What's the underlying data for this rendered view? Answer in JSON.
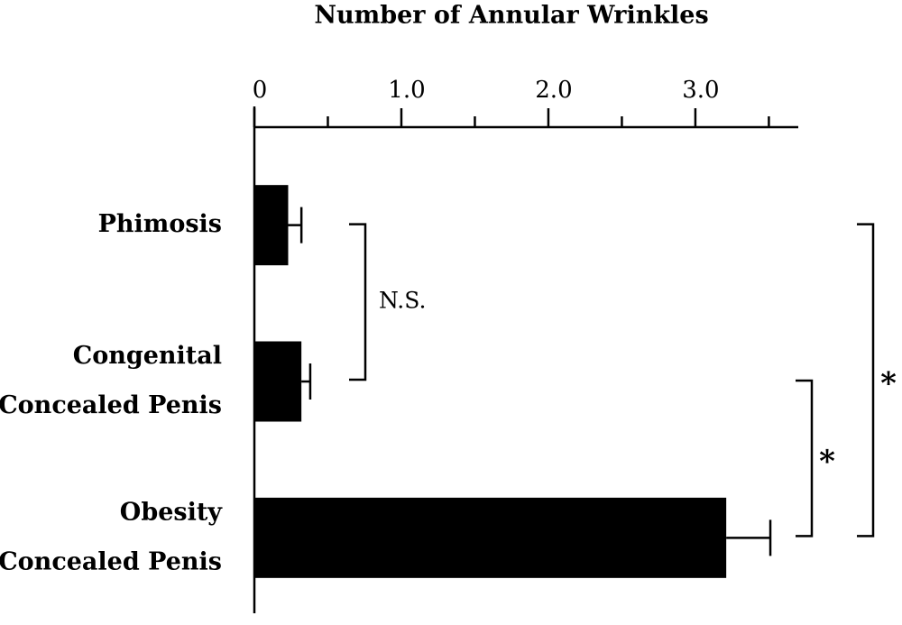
{
  "chart_data": {
    "type": "barh",
    "title": "Number of Annular Wrinkles",
    "categories": [
      [
        "Phimosis"
      ],
      [
        "Congenital",
        "Concealed Penis"
      ],
      [
        "Obesity",
        "Concealed Penis"
      ]
    ],
    "values": [
      0.23,
      0.32,
      3.21
    ],
    "errors": [
      0.09,
      0.06,
      0.3
    ],
    "color": "#000000",
    "xlim": [
      0,
      3.7
    ],
    "xticks": [
      0,
      {
        "value": 1,
        "label": "1.0"
      },
      {
        "value": 2,
        "label": "2.0"
      },
      {
        "value": 3,
        "label": "3.0"
      }
    ],
    "xminorticks": [
      0.5,
      1.5,
      2.5,
      3.5
    ],
    "annotations": [
      {
        "text": "N.S.",
        "between": [
          0,
          1
        ]
      },
      {
        "text": "*",
        "between": [
          1,
          2
        ]
      },
      {
        "text": "*",
        "between": [
          0,
          2
        ]
      }
    ]
  }
}
